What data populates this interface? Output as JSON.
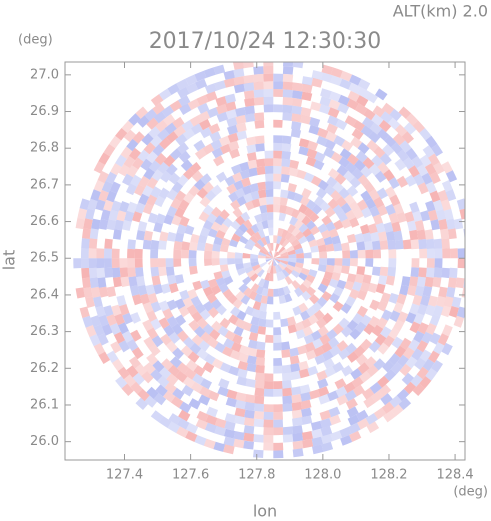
{
  "chart_data": {
    "type": "ppi",
    "title": "2017/10/24 12:30:30",
    "subtitle": "ALT(km) 2.0",
    "xlabel": "lon",
    "ylabel": "lat",
    "xunit": "(deg)",
    "yunit": "(deg)",
    "xlim": [
      127.22,
      128.43
    ],
    "ylim": [
      25.95,
      27.035
    ],
    "xticks": [
      127.4,
      127.6,
      127.8,
      {
        "value": 128.0,
        "label": "128.0"
      },
      128.2,
      128.4
    ],
    "yticks": [
      {
        "value": 26.0,
        "label": "26.0"
      },
      26.1,
      26.2,
      26.3,
      26.4,
      26.5,
      26.6,
      26.7,
      26.8,
      26.9,
      {
        "value": 27.0,
        "label": "27.0"
      }
    ],
    "center": [
      127.85,
      26.5
    ],
    "colors": [
      "#f4a0a0",
      "#a8b0f0"
    ]
  }
}
